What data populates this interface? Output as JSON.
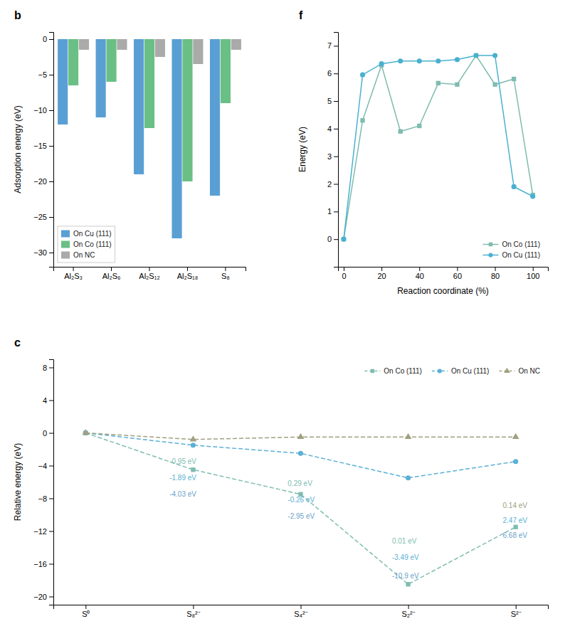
{
  "chart_data": [
    {
      "type": "bar",
      "title": "b",
      "categories": [
        "Al₂S₃",
        "Al₂S₆",
        "Al₂S₁₂",
        "Al₂S₁₈",
        "S₈"
      ],
      "series": [
        {
          "name": "On Cu (111)",
          "color": "#5a9fd4",
          "values": [
            -12.0,
            -11.0,
            -19.0,
            -28.0,
            -22.0
          ]
        },
        {
          "name": "On Co (111)",
          "color": "#6abf85",
          "values": [
            -6.5,
            -6.0,
            -12.5,
            -20.0,
            -9.0
          ]
        },
        {
          "name": "On NC",
          "color": "#aaaaaa",
          "values": [
            -1.5,
            -1.5,
            -2.5,
            -3.5,
            -1.5
          ]
        }
      ],
      "ylabel": "Adsorption energy (eV)",
      "ylim": [
        -32,
        1
      ],
      "yticks": [
        0,
        -5,
        -10,
        -15,
        -20,
        -25,
        -30
      ],
      "legend": "lower left"
    },
    {
      "type": "line",
      "title": "c",
      "categories": [
        "S⁰",
        "S₈²⁻",
        "S₄²⁻",
        "S₂²⁻",
        "S²⁻"
      ],
      "series": [
        {
          "name": "On Co (111)",
          "color": "#7ebcb0",
          "marker": "square",
          "line_style": "dashed",
          "values": [
            0,
            -4.5,
            -7.5,
            -18.5,
            -11.5
          ]
        },
        {
          "name": "On Cu (111)",
          "color": "#5ab0d5",
          "marker": "circle",
          "line_style": "dashed",
          "values": [
            0,
            -1.5,
            -2.5,
            -5.5,
            -3.5
          ]
        },
        {
          "name": "On NC",
          "color": "#a0a080",
          "marker": "triangle",
          "line_style": "dashed",
          "values": [
            0,
            -0.8,
            -0.5,
            -0.5,
            -0.5
          ]
        }
      ],
      "ylabel": "Relative energy (eV)",
      "ylim": [
        -21,
        9
      ],
      "yticks": [
        -20,
        -16,
        -12,
        -8,
        -4,
        0,
        4,
        8
      ],
      "legend": "upper right",
      "annotations": [
        {
          "text": "-0.95 eV",
          "x": 0.78,
          "y": -3.8,
          "color": "#7ebcb0"
        },
        {
          "text": "-1.89 eV",
          "x": 0.78,
          "y": -5.8,
          "color": "#5ab0d5"
        },
        {
          "text": "-4.03 eV",
          "x": 0.78,
          "y": -7.8,
          "color": "#6a9fc8"
        },
        {
          "text": "0.29 eV",
          "x": 1.88,
          "y": -6.5,
          "color": "#7ebcb0"
        },
        {
          "text": "-0.26 eV",
          "x": 1.88,
          "y": -8.5,
          "color": "#5ab0d5"
        },
        {
          "text": "-2.95 eV",
          "x": 1.88,
          "y": -10.5,
          "color": "#6a9fc8"
        },
        {
          "text": "0.01 eV",
          "x": 2.85,
          "y": -13.5,
          "color": "#7ebcb0"
        },
        {
          "text": "-3.49 eV",
          "x": 2.85,
          "y": -15.5,
          "color": "#5ab0d5"
        },
        {
          "text": "-10.9 eV",
          "x": 2.85,
          "y": -17.8,
          "color": "#6a9fc8"
        },
        {
          "text": "0.14 eV",
          "x": 3.88,
          "y": -9.2,
          "color": "#a0a080"
        },
        {
          "text": "2.47 eV",
          "x": 3.88,
          "y": -11.0,
          "color": "#5ab0d5"
        },
        {
          "text": "6.68 eV",
          "x": 3.88,
          "y": -12.8,
          "color": "#6a9fc8"
        }
      ]
    },
    {
      "type": "line",
      "title": "f",
      "x": [
        0,
        10,
        20,
        30,
        40,
        50,
        60,
        70,
        80,
        90,
        100
      ],
      "series": [
        {
          "name": "On Co (111)",
          "color": "#7ebcb0",
          "marker": "square",
          "line_style": "solid",
          "values": [
            0,
            4.3,
            6.3,
            3.9,
            4.1,
            5.65,
            5.6,
            6.65,
            5.6,
            5.8,
            1.6
          ]
        },
        {
          "name": "On Cu (111)",
          "color": "#4ab0d0",
          "marker": "circle",
          "line_style": "solid",
          "values": [
            0,
            5.95,
            6.35,
            6.45,
            6.45,
            6.45,
            6.5,
            6.65,
            6.65,
            1.9,
            1.55
          ]
        }
      ],
      "xlabel": "Reaction coordinate (%)",
      "ylabel": "Energy (eV)",
      "xlim": [
        -3,
        108
      ],
      "xticks": [
        0,
        20,
        40,
        60,
        80,
        100
      ],
      "ylim": [
        -1,
        7.5
      ],
      "yticks": [
        0,
        1,
        2,
        3,
        4,
        5,
        6,
        7
      ],
      "legend": "lower right"
    }
  ]
}
